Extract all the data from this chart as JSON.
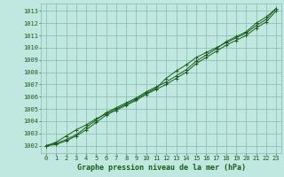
{
  "title": "Graphe pression niveau de la mer (hPa)",
  "bg_color": "#c0e8e0",
  "plot_bg_color": "#c0e8e0",
  "grid_color": "#90c0b8",
  "line_color": "#1a5c1a",
  "x_labels": [
    "0",
    "1",
    "2",
    "3",
    "4",
    "5",
    "6",
    "7",
    "8",
    "9",
    "10",
    "11",
    "12",
    "13",
    "14",
    "15",
    "16",
    "17",
    "18",
    "19",
    "20",
    "21",
    "22",
    "23"
  ],
  "ylim": [
    1001.4,
    1013.6
  ],
  "xlim": [
    -0.5,
    23.5
  ],
  "yticks": [
    1002,
    1003,
    1004,
    1005,
    1006,
    1007,
    1008,
    1009,
    1010,
    1011,
    1012,
    1013
  ],
  "line1": [
    1002.0,
    1002.2,
    1002.5,
    1002.9,
    1003.5,
    1004.1,
    1004.7,
    1005.1,
    1005.5,
    1005.9,
    1006.4,
    1006.8,
    1007.2,
    1007.7,
    1008.2,
    1008.9,
    1009.4,
    1009.9,
    1010.5,
    1010.9,
    1011.3,
    1012.0,
    1012.5,
    1013.2
  ],
  "line2": [
    1002.0,
    1002.3,
    1002.8,
    1003.3,
    1003.7,
    1004.2,
    1004.6,
    1005.0,
    1005.4,
    1005.8,
    1006.3,
    1006.7,
    1007.5,
    1008.1,
    1008.6,
    1009.2,
    1009.6,
    1010.0,
    1010.4,
    1010.8,
    1011.2,
    1011.8,
    1012.3,
    1013.2
  ],
  "line3": [
    1002.0,
    1002.1,
    1002.4,
    1002.8,
    1003.3,
    1003.9,
    1004.5,
    1004.9,
    1005.3,
    1005.7,
    1006.2,
    1006.6,
    1007.0,
    1007.5,
    1008.0,
    1008.7,
    1009.2,
    1009.7,
    1010.2,
    1010.6,
    1011.0,
    1011.6,
    1012.1,
    1013.0
  ],
  "tick_fontsize": 5.0,
  "label_fontsize": 6.0
}
